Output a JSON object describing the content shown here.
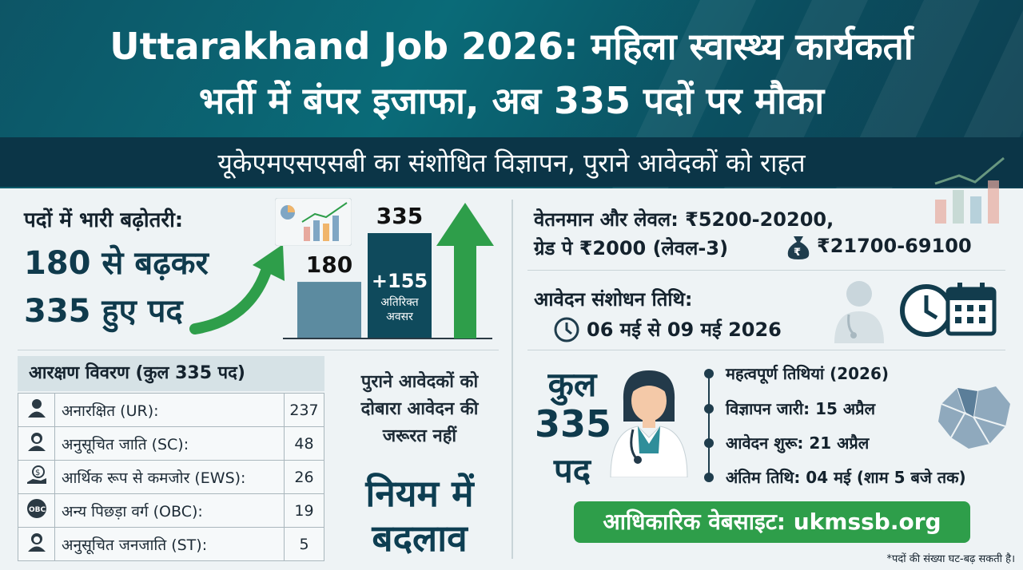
{
  "header": {
    "title_line1": "Uttarakhand Job 2026: महिला स्वास्थ्य कार्यकर्ता",
    "title_line2": "भर्ती में बंपर इजाफा, अब 335 पदों पर मौका",
    "subtitle": "यूकेएमएसएसबी का संशोधित विज्ञापन, पुराने आवेदकों को राहत"
  },
  "posts_increase": {
    "label": "पदों में भारी बढ़ोतरी:",
    "line1": "180 से बढ़कर",
    "line2": "335 हुए पद"
  },
  "chart_data": {
    "type": "bar",
    "categories": [
      "",
      ""
    ],
    "values": [
      180,
      335
    ],
    "data_labels": [
      "180",
      "335"
    ],
    "annotation_value": "+155",
    "annotation_text": "अतिरिक्त अवसर",
    "colors": [
      "#5c8ba0",
      "#0f4a5c"
    ]
  },
  "reservation": {
    "title": "आरक्षण विवरण (कुल 335 पद)",
    "rows": [
      {
        "icon": "person-icon",
        "label": "अनारक्षित (UR):",
        "value": "237"
      },
      {
        "icon": "woman-icon",
        "label": "अनुसूचित जाति (SC):",
        "value": "48"
      },
      {
        "icon": "money-hand-icon",
        "label": "आर्थिक रूप से कमजोर (EWS):",
        "value": "26"
      },
      {
        "icon": "obc-icon",
        "label": "अन्य पिछड़ा वर्ग (OBC):",
        "value": "19"
      },
      {
        "icon": "woman-icon",
        "label": "अनुसूचित जनजाति (ST):",
        "value": "5"
      }
    ]
  },
  "old_applicants": {
    "line1": "पुराने आवेदकों को",
    "line2": "दोबारा आवेदन की",
    "line3": "जरूरत नहीं",
    "rule1": "नियम में",
    "rule2": "बदलाव"
  },
  "salary": {
    "line1": "वेतनमान और लेवल:  ₹5200-20200,",
    "line2a": "ग्रेड पे ₹2000 (लेवल-3)",
    "line2b": "₹21700-69100"
  },
  "revision": {
    "label": "आवेदन संशोधन तिथि:",
    "value": "06 मई से 09 मई 2026"
  },
  "total": {
    "line1": "कुल",
    "line2": "335",
    "line3": "पद"
  },
  "dates": {
    "heading": "महत्वपूर्ण तिथियां (2026)",
    "items": [
      "विज्ञापन जारी: 15 अप्रैल",
      "आवेदन शुरू: 21 अप्रैल",
      "अंतिम तिथि: 04 मई (शाम 5 बजे तक)"
    ]
  },
  "website": "आधिकारिक वेबसाइट: ukmssb.org",
  "footnote": "*पदों की संख्या घट-बढ़ सकती है।",
  "colors": {
    "header_teal": "#0a6b78",
    "dark_navy": "#0b3547",
    "green": "#2e9e4a",
    "bar_light": "#5c8ba0",
    "bar_dark": "#0f4a5c"
  }
}
